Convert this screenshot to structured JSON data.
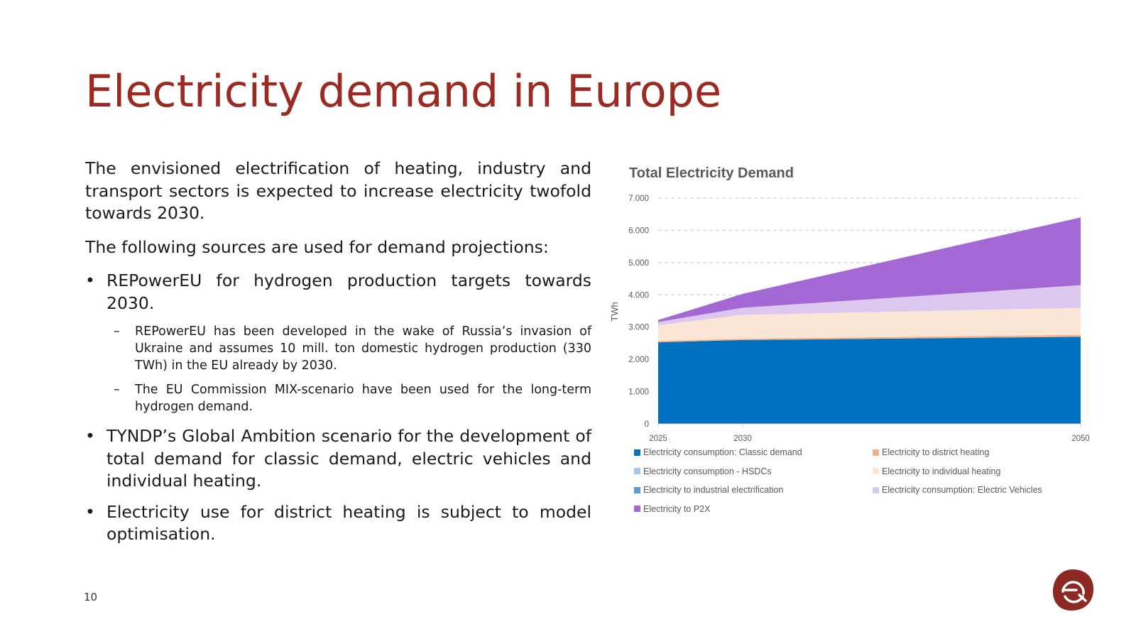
{
  "slide": {
    "title": "Electricity demand in Europe",
    "page_number": "10",
    "intro": "The envisioned electrification of heating, industry and transport sectors is expected to increase electricity twofold towards 2030.",
    "sources_lead": "The following sources are used for demand projections:",
    "bullet_glyph": "•",
    "dash_glyph": "–",
    "bullets": [
      {
        "text": "REPowerEU for hydrogen production targets towards 2030.",
        "subs": [
          "REPowerEU has been developed in the wake of Russia’s invasion of Ukraine and assumes 10 mill. ton domestic hydrogen production (330 TWh) in the EU already by 2030.",
          "The EU Commission MIX-scenario have been used for the long-term hydrogen demand."
        ]
      },
      {
        "text": "TYNDP’s Global Ambition scenario for the development of total demand for classic demand, electric vehicles and individual heating."
      },
      {
        "text": "Electricity use for district heating is subject to model optimisation."
      }
    ],
    "logo": {
      "icon": "ea-logo-icon",
      "color": "#8b2a22"
    }
  },
  "chart_data": {
    "type": "area",
    "stacked": true,
    "title": "Total Electricity Demand",
    "ylabel": "TWh",
    "xlabel": "",
    "x": [
      "2025",
      "2030",
      "2050"
    ],
    "x_positions": [
      2025,
      2030,
      2050
    ],
    "ylim": [
      0,
      7000
    ],
    "yticks": [
      0,
      1000,
      2000,
      3000,
      4000,
      5000,
      6000,
      7000
    ],
    "ytick_labels": [
      "0",
      "1.000",
      "2.000",
      "3.000",
      "4.000",
      "5.000",
      "6.000",
      "7.000"
    ],
    "grid": "horizontal dashed",
    "legend_position": "bottom",
    "series": [
      {
        "name": "Electricity consumption: Classic demand",
        "color": "#0070c0",
        "values": [
          2530,
          2600,
          2700
        ]
      },
      {
        "name": "Electricity consumption - HSDCs",
        "color": "#a9c4eb",
        "values": [
          0,
          0,
          0
        ]
      },
      {
        "name": "Electricity to industrial electrification",
        "color": "#5b9bd5",
        "values": [
          0,
          0,
          0
        ]
      },
      {
        "name": "Electricity to district heating",
        "color": "#f4b183",
        "values": [
          40,
          40,
          60
        ]
      },
      {
        "name": "Electricity to individual heating",
        "color": "#fbe5d6",
        "values": [
          490,
          740,
          840
        ]
      },
      {
        "name": "Electricity consumption: Electric Vehicles",
        "color": "#dcc8ef",
        "values": [
          100,
          220,
          700
        ]
      },
      {
        "name": "Electricity to P2X",
        "color": "#a368d4",
        "values": [
          60,
          430,
          2100
        ]
      }
    ],
    "legend_order": [
      0,
      3,
      1,
      4,
      2,
      5,
      6
    ]
  }
}
